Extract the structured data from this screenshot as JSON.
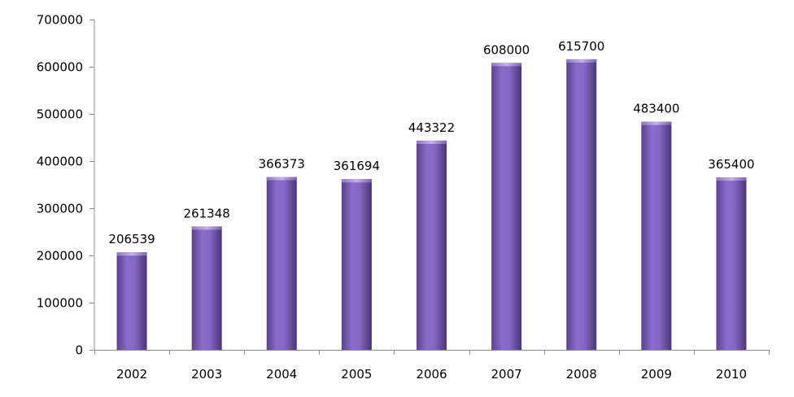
{
  "chart_data": {
    "type": "bar",
    "title": "",
    "xlabel": "",
    "ylabel": "",
    "categories": [
      "2002",
      "2003",
      "2004",
      "2005",
      "2006",
      "2007",
      "2008",
      "2009",
      "2010"
    ],
    "values": [
      206539,
      261348,
      366373,
      361694,
      443322,
      608000,
      615700,
      483400,
      365400
    ],
    "data_labels": [
      "206539",
      "261348",
      "366373",
      "361694",
      "443322",
      "608000",
      "615700",
      "483400",
      "365400"
    ],
    "ylim": [
      0,
      700000
    ],
    "y_ticks": [
      0,
      100000,
      200000,
      300000,
      400000,
      500000,
      600000,
      700000
    ],
    "y_tick_labels": [
      "0",
      "100000",
      "200000",
      "300000",
      "400000",
      "500000",
      "600000",
      "700000"
    ],
    "grid": false,
    "legend": "none",
    "colors": {
      "bar_light": "#9a7fd0",
      "bar_mid": "#7f60b8",
      "bar_dark": "#4f3a80",
      "bar_top": "#b7a3e0",
      "axis": "#8c8c8c",
      "text": "#000000"
    }
  }
}
